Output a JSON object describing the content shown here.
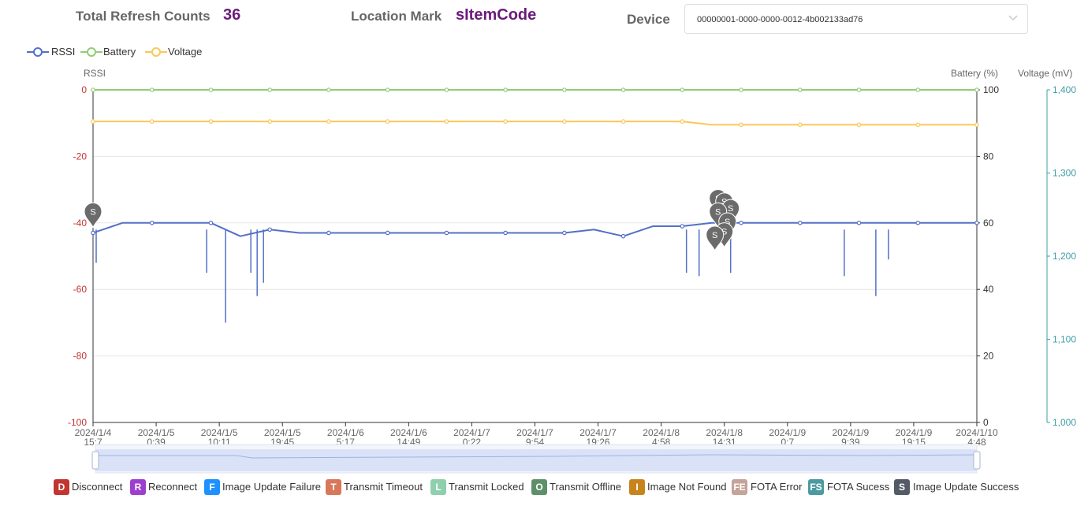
{
  "header": {
    "refresh_label": "Total Refresh Counts",
    "refresh_value": "36",
    "location_label": "Location Mark",
    "location_value": "sItemCode",
    "device_label": "Device",
    "device_value": "00000001-0000-0000-0012-4b002133ad76"
  },
  "legend": [
    {
      "name": "RSSI",
      "color": "#5470c6"
    },
    {
      "name": "Battery",
      "color": "#91cc75"
    },
    {
      "name": "Voltage",
      "color": "#fac858"
    }
  ],
  "axis_titles": {
    "rssi": "RSSI",
    "battery": "Battery (%)",
    "voltage": "Voltage (mV)"
  },
  "chart_data": {
    "type": "line",
    "x_tick_labels": [
      [
        "2024/1/4",
        "15:7"
      ],
      [
        "2024/1/5",
        "0:39"
      ],
      [
        "2024/1/5",
        "10:11"
      ],
      [
        "2024/1/5",
        "19:45"
      ],
      [
        "2024/1/6",
        "5:17"
      ],
      [
        "2024/1/6",
        "14:49"
      ],
      [
        "2024/1/7",
        "0:22"
      ],
      [
        "2024/1/7",
        "9:54"
      ],
      [
        "2024/1/7",
        "19:26"
      ],
      [
        "2024/1/8",
        "4:58"
      ],
      [
        "2024/1/8",
        "14:31"
      ],
      [
        "2024/1/9",
        "0:7"
      ],
      [
        "2024/1/9",
        "9:39"
      ],
      [
        "2024/1/9",
        "19:15"
      ],
      [
        "2024/1/10",
        "4:48"
      ]
    ],
    "y_axes": [
      {
        "name": "RSSI",
        "min": -100,
        "max": 0,
        "ticks": [
          0,
          -20,
          -40,
          -60,
          -80,
          -100
        ],
        "color": "#c23531"
      },
      {
        "name": "Battery (%)",
        "min": 0,
        "max": 100,
        "ticks": [
          100,
          80,
          60,
          40,
          20,
          0
        ],
        "color": "#333333"
      },
      {
        "name": "Voltage (mV)",
        "min": 1000,
        "max": 1400,
        "ticks": [
          1400,
          1300,
          1200,
          1100,
          1000
        ],
        "color": "#3f9fa5"
      }
    ],
    "series": [
      {
        "name": "RSSI",
        "color": "#5470c6",
        "axis": 0,
        "values": [
          -43,
          -40,
          -40,
          -40,
          -40,
          -44,
          -42,
          -43,
          -43,
          -43,
          -43,
          -43,
          -43,
          -43,
          -43,
          -43,
          -43,
          -42,
          -44,
          -41,
          -41,
          -40,
          -40,
          -40,
          -40,
          -40,
          -40,
          -40,
          -40,
          -40,
          -40
        ]
      },
      {
        "name": "Battery",
        "color": "#91cc75",
        "axis": 1,
        "values": [
          100,
          100,
          100,
          100,
          100,
          100,
          100,
          100,
          100,
          100,
          100,
          100,
          100,
          100,
          100,
          100,
          100,
          100,
          100,
          100,
          100,
          100,
          100,
          100,
          100,
          100,
          100,
          100,
          100,
          100,
          100
        ]
      },
      {
        "name": "Voltage",
        "color": "#fac858",
        "axis": 2,
        "values": [
          1362,
          1362,
          1362,
          1362,
          1362,
          1362,
          1362,
          1362,
          1362,
          1362,
          1362,
          1362,
          1362,
          1362,
          1362,
          1362,
          1362,
          1362,
          1362,
          1362,
          1362,
          1358,
          1358,
          1358,
          1358,
          1358,
          1358,
          1358,
          1358,
          1358,
          1358
        ]
      }
    ],
    "markers": [
      {
        "label": "S",
        "x_index": 0.0,
        "rssi": -38
      },
      {
        "label": "S",
        "x_index": 9.9,
        "rssi": -34
      },
      {
        "label": "S",
        "x_index": 10.0,
        "rssi": -35
      },
      {
        "label": "S",
        "x_index": 10.1,
        "rssi": -37
      },
      {
        "label": "S",
        "x_index": 9.9,
        "rssi": -38
      },
      {
        "label": "S",
        "x_index": 10.05,
        "rssi": -41
      },
      {
        "label": "S",
        "x_index": 10.0,
        "rssi": -44
      },
      {
        "label": "S",
        "x_index": 9.85,
        "rssi": -45
      }
    ],
    "rssi_dips": [
      {
        "x_index": 0.05,
        "value": -52
      },
      {
        "x_index": 1.8,
        "value": -55
      },
      {
        "x_index": 2.1,
        "value": -70
      },
      {
        "x_index": 2.5,
        "value": -55
      },
      {
        "x_index": 2.6,
        "value": -62
      },
      {
        "x_index": 2.7,
        "value": -58
      },
      {
        "x_index": 9.4,
        "value": -55
      },
      {
        "x_index": 9.6,
        "value": -56
      },
      {
        "x_index": 10.1,
        "value": -55
      },
      {
        "x_index": 11.9,
        "value": -56
      },
      {
        "x_index": 12.4,
        "value": -62
      },
      {
        "x_index": 12.6,
        "value": -51
      }
    ]
  },
  "event_legend": [
    {
      "code": "D",
      "label": "Disconnect",
      "color": "#c23531"
    },
    {
      "code": "R",
      "label": "Reconnect",
      "color": "#9c3fcf"
    },
    {
      "code": "F",
      "label": "Image Update Failure",
      "color": "#1e90ff"
    },
    {
      "code": "T",
      "label": "Transmit Timeout",
      "color": "#d9775a"
    },
    {
      "code": "L",
      "label": "Transmit Locked",
      "color": "#8fcfad"
    },
    {
      "code": "O",
      "label": "Transmit Offline",
      "color": "#5e8f6b"
    },
    {
      "code": "I",
      "label": "Image Not Found",
      "color": "#c8841c"
    },
    {
      "code": "FE",
      "label": "FOTA Error",
      "color": "#c4a39a"
    },
    {
      "code": "FS",
      "label": "FOTA Sucess",
      "color": "#4b9aa0"
    },
    {
      "code": "S",
      "label": "Image Update Success",
      "color": "#555b66"
    }
  ]
}
